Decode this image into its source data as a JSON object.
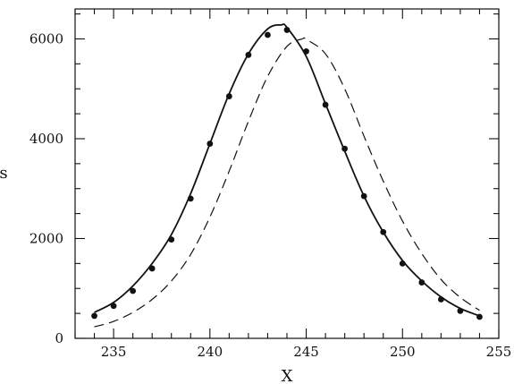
{
  "chart_data": {
    "type": "scatter",
    "title": "",
    "xlabel": "X",
    "ylabel": "s",
    "xlim": [
      233,
      255
    ],
    "ylim": [
      0,
      6600
    ],
    "x_ticks": [
      235,
      240,
      245,
      250,
      255
    ],
    "y_ticks": [
      0,
      2000,
      4000,
      6000
    ],
    "x_tick_labels": [
      "235",
      "240",
      "245",
      "250",
      "255"
    ],
    "y_tick_labels": [
      "0",
      "2000",
      "4000",
      "6000"
    ],
    "grid": false,
    "legend": "none",
    "series": [
      {
        "type": "scatter",
        "marker": "filled-circle",
        "x": [
          234,
          235,
          236,
          237,
          238,
          239,
          240,
          241,
          242,
          243,
          244,
          245,
          246,
          247,
          248,
          249,
          250,
          251,
          252,
          253,
          254
        ],
        "y": [
          450,
          650,
          950,
          1400,
          1980,
          2800,
          3900,
          4850,
          5680,
          6080,
          6180,
          5750,
          4680,
          3800,
          2850,
          2130,
          1500,
          1120,
          780,
          550,
          430
        ]
      },
      {
        "type": "line",
        "style": "solid",
        "x": [
          234,
          235,
          236,
          237,
          238,
          239,
          240,
          241,
          242,
          243,
          243.7,
          244,
          245,
          246,
          247,
          248,
          249,
          250,
          251,
          252,
          253,
          254
        ],
        "y": [
          520,
          720,
          1050,
          1500,
          2080,
          2900,
          3900,
          4900,
          5700,
          6200,
          6280,
          6230,
          5650,
          4700,
          3750,
          2850,
          2130,
          1560,
          1150,
          830,
          600,
          450
        ]
      },
      {
        "type": "line",
        "style": "dashed",
        "x": [
          234,
          235,
          236,
          237,
          238,
          239,
          240,
          241,
          242,
          243,
          244,
          244.8,
          245,
          246,
          247,
          248,
          249,
          250,
          251,
          252,
          253,
          254
        ],
        "y": [
          230,
          340,
          520,
          780,
          1150,
          1680,
          2430,
          3350,
          4350,
          5250,
          5850,
          6000,
          5990,
          5700,
          5000,
          4050,
          3150,
          2350,
          1700,
          1180,
          820,
          560
        ]
      }
    ]
  }
}
